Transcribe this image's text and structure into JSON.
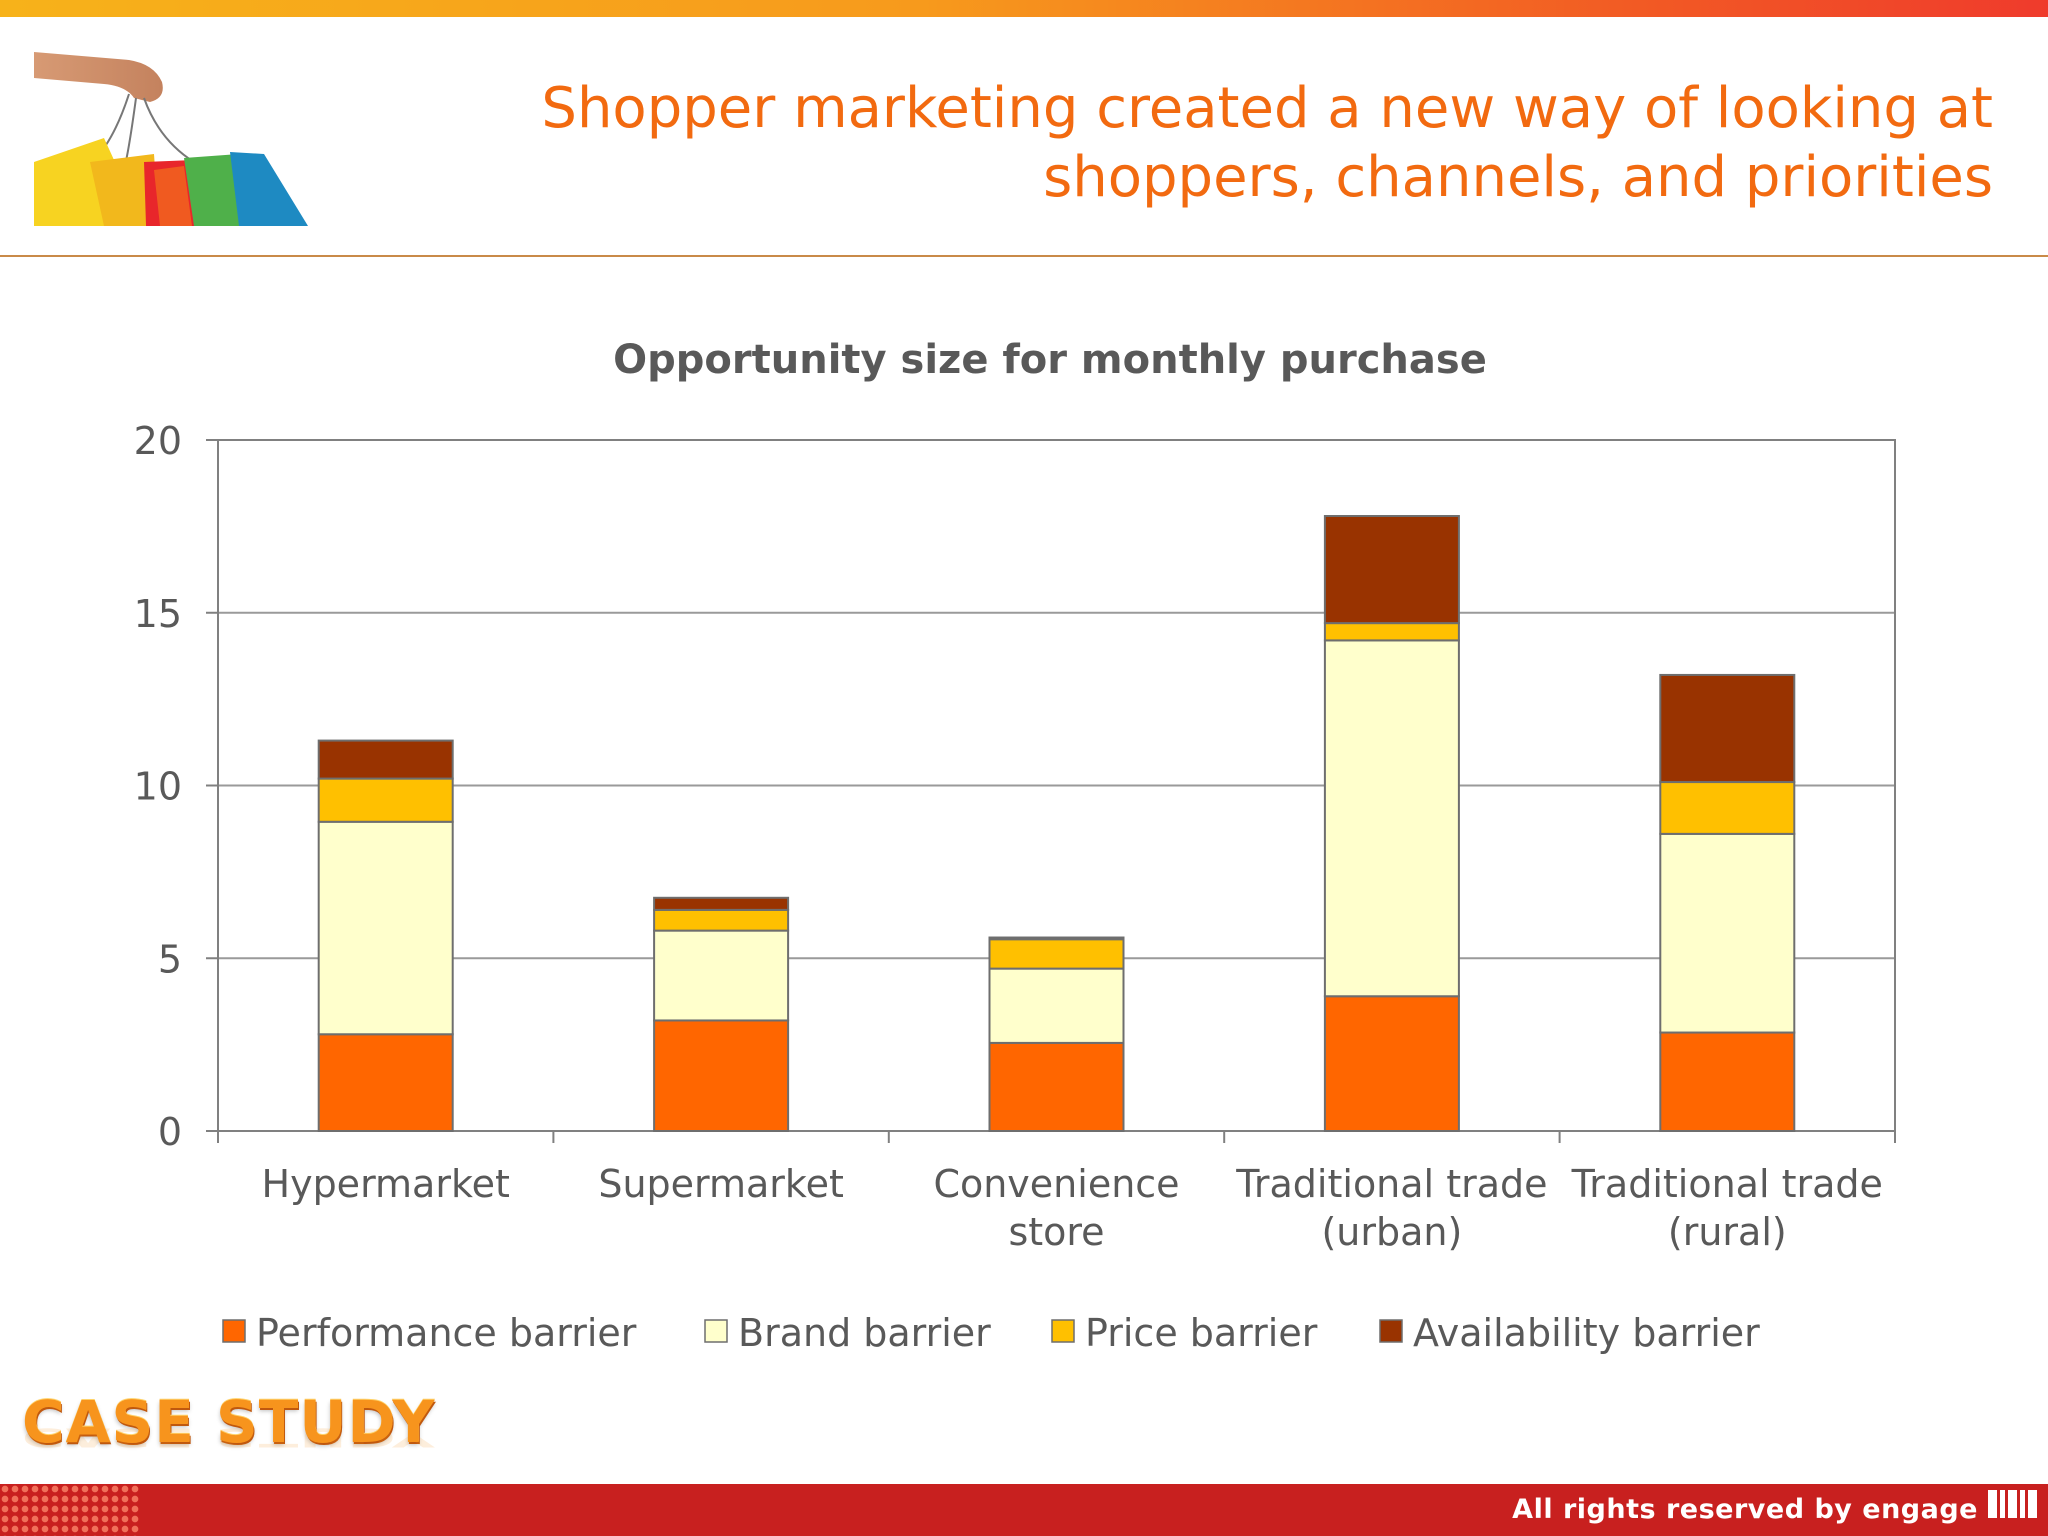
{
  "slide": {
    "title_line1": "Shopper marketing created a new way of looking at",
    "title_line2": "shoppers, channels, and priorities",
    "case_study": "CASE STUDY",
    "copyright": "All rights reserved by engage"
  },
  "colors": {
    "accent": "#f26a10",
    "footer": "#c8201f",
    "top_bar_start": "#f7b21a",
    "top_bar_end": "#ef3b2c"
  },
  "chart_data": {
    "type": "bar",
    "stacked": true,
    "title": "Opportunity size for monthly purchase",
    "xlabel": "",
    "ylabel": "",
    "ylim": [
      0,
      20
    ],
    "yticks": [
      0,
      5,
      10,
      15,
      20
    ],
    "grid": true,
    "legend_position": "bottom",
    "categories": [
      [
        "Hypermarket"
      ],
      [
        "Supermarket"
      ],
      [
        "Convenience",
        "store"
      ],
      [
        "Traditional trade",
        "(urban)"
      ],
      [
        "Traditional trade",
        "(rural)"
      ]
    ],
    "series": [
      {
        "name": "Performance barrier",
        "color": "#ff6600",
        "values": [
          2.8,
          3.2,
          2.55,
          3.9,
          2.85
        ]
      },
      {
        "name": "Brand barrier",
        "color": "#ffffcc",
        "values": [
          6.15,
          2.6,
          2.15,
          10.3,
          5.75
        ]
      },
      {
        "name": "Price barrier",
        "color": "#ffc000",
        "values": [
          1.25,
          0.6,
          0.85,
          0.5,
          1.5
        ]
      },
      {
        "name": "Availability barrier",
        "color": "#993300",
        "values": [
          1.1,
          0.35,
          0.05,
          3.1,
          3.1
        ]
      }
    ]
  }
}
